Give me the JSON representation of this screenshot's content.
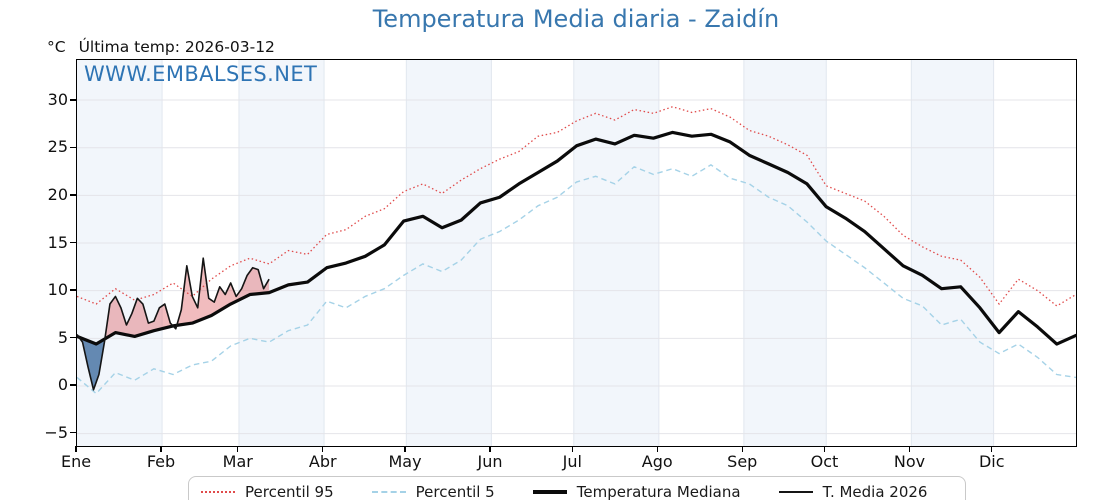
{
  "title": "Temperatura Media diaria - Zaidín",
  "header": {
    "units": "°C",
    "last_temp": "Última temp: 2026-03-12"
  },
  "watermark": "WWW.EMBALSES.NET",
  "colors": {
    "title_blue": "#3877ae",
    "watermark_blue": "#2e74b4",
    "p95_red": "#e04b4b",
    "p5_blue": "#a5d2e7",
    "median_black": "#0b0b0b",
    "t2026_black": "#151515",
    "fill_above": "rgba(222,96,100,0.42)",
    "fill_below": "rgba(64,110,160,0.8)",
    "band": "#f2f6fb",
    "hgrid": "#e4e4e9",
    "vgrid": "#e1e7ef",
    "axis": "#000000",
    "legend_border": "#c9c9c9"
  },
  "chart_data": {
    "type": "line",
    "title": "Temperatura Media diaria - Zaidín",
    "xlabel": "",
    "ylabel": "°C",
    "ylim": [
      -6.3,
      34.2
    ],
    "yticks": [
      -5,
      0,
      5,
      10,
      15,
      20,
      25,
      30
    ],
    "grid": true,
    "legend_position": "bottom",
    "days_in_year": 365,
    "months": [
      {
        "label": "Ene",
        "start_day": 1
      },
      {
        "label": "Feb",
        "start_day": 32
      },
      {
        "label": "Mar",
        "start_day": 60
      },
      {
        "label": "Abr",
        "start_day": 91
      },
      {
        "label": "May",
        "start_day": 121
      },
      {
        "label": "Jun",
        "start_day": 152
      },
      {
        "label": "Jul",
        "start_day": 182
      },
      {
        "label": "Ago",
        "start_day": 213
      },
      {
        "label": "Sep",
        "start_day": 244
      },
      {
        "label": "Oct",
        "start_day": 274
      },
      {
        "label": "Nov",
        "start_day": 305
      },
      {
        "label": "Dic",
        "start_day": 335
      }
    ],
    "series": [
      {
        "name": "Percentil 95",
        "line_style": "dotted",
        "line_weight": "light",
        "color": "#e04b4b",
        "days": [
          1,
          8,
          15,
          22,
          29,
          36,
          43,
          50,
          57,
          64,
          71,
          78,
          85,
          92,
          99,
          106,
          113,
          120,
          127,
          134,
          141,
          148,
          155,
          162,
          169,
          176,
          183,
          190,
          197,
          204,
          211,
          218,
          225,
          232,
          239,
          246,
          253,
          260,
          267,
          274,
          281,
          288,
          295,
          302,
          309,
          316,
          323,
          330,
          337,
          344,
          351,
          358,
          365
        ],
        "values": [
          9.4,
          8.6,
          10.2,
          9.0,
          9.6,
          10.8,
          9.4,
          11.2,
          12.6,
          13.4,
          12.8,
          14.2,
          13.8,
          15.9,
          16.4,
          17.8,
          18.6,
          20.4,
          21.2,
          20.2,
          21.6,
          22.8,
          23.8,
          24.6,
          26.2,
          26.6,
          27.8,
          28.6,
          27.9,
          29.0,
          28.6,
          29.3,
          28.7,
          29.1,
          28.2,
          26.8,
          26.2,
          25.3,
          24.2,
          21.0,
          20.2,
          19.4,
          17.8,
          15.8,
          14.6,
          13.6,
          13.2,
          11.4,
          8.6,
          11.2,
          10.0,
          8.4,
          9.6
        ]
      },
      {
        "name": "Percentil 5",
        "line_style": "dashed",
        "line_weight": "light",
        "color": "#a5d2e7",
        "days": [
          1,
          8,
          15,
          22,
          29,
          36,
          43,
          50,
          57,
          64,
          71,
          78,
          85,
          92,
          99,
          106,
          113,
          120,
          127,
          134,
          141,
          148,
          155,
          162,
          169,
          176,
          183,
          190,
          197,
          204,
          211,
          218,
          225,
          232,
          239,
          246,
          253,
          260,
          267,
          274,
          281,
          288,
          295,
          302,
          309,
          316,
          323,
          330,
          337,
          344,
          351,
          358,
          365
        ],
        "values": [
          0.9,
          -0.8,
          1.4,
          0.6,
          1.8,
          1.2,
          2.2,
          2.6,
          4.2,
          5.0,
          4.6,
          5.8,
          6.4,
          8.9,
          8.2,
          9.4,
          10.2,
          11.6,
          12.8,
          12.0,
          13.2,
          15.4,
          16.2,
          17.4,
          18.9,
          19.8,
          21.4,
          22.0,
          21.2,
          23.0,
          22.2,
          22.8,
          22.0,
          23.2,
          21.8,
          21.2,
          19.8,
          18.9,
          17.2,
          15.2,
          13.8,
          12.4,
          10.8,
          9.2,
          8.4,
          6.4,
          7.0,
          4.6,
          3.4,
          4.4,
          3.0,
          1.2,
          0.9
        ]
      },
      {
        "name": "Temperatura Mediana",
        "line_style": "solid",
        "line_weight": "thick",
        "color": "#0b0b0b",
        "days": [
          1,
          8,
          15,
          22,
          29,
          36,
          43,
          50,
          57,
          64,
          71,
          78,
          85,
          92,
          99,
          106,
          113,
          120,
          127,
          134,
          141,
          148,
          155,
          162,
          169,
          176,
          183,
          190,
          197,
          204,
          211,
          218,
          225,
          232,
          239,
          246,
          253,
          260,
          267,
          274,
          281,
          288,
          295,
          302,
          309,
          316,
          323,
          330,
          337,
          344,
          351,
          358,
          365
        ],
        "values": [
          5.2,
          4.4,
          5.6,
          5.2,
          5.8,
          6.3,
          6.6,
          7.4,
          8.6,
          9.6,
          9.8,
          10.6,
          10.9,
          12.4,
          12.9,
          13.6,
          14.8,
          17.3,
          17.8,
          16.6,
          17.4,
          19.2,
          19.8,
          21.2,
          22.4,
          23.6,
          25.2,
          25.9,
          25.4,
          26.3,
          26.0,
          26.6,
          26.2,
          26.4,
          25.6,
          24.2,
          23.3,
          22.4,
          21.2,
          18.8,
          17.6,
          16.2,
          14.4,
          12.6,
          11.6,
          10.2,
          10.4,
          8.2,
          5.6,
          7.8,
          6.2,
          4.4,
          5.3
        ]
      },
      {
        "name": "T. Media 2026",
        "line_style": "solid",
        "line_weight": "thin",
        "color": "#151515",
        "fill_vs": "Temperatura Mediana",
        "days": [
          1,
          3,
          5,
          7,
          9,
          11,
          13,
          15,
          17,
          19,
          21,
          23,
          25,
          27,
          29,
          31,
          33,
          35,
          37,
          39,
          41,
          43,
          45,
          47,
          49,
          51,
          53,
          55,
          57,
          59,
          61,
          63,
          65,
          67,
          69,
          71
        ],
        "values": [
          5.4,
          4.6,
          2.0,
          -0.4,
          1.2,
          4.6,
          8.6,
          9.4,
          8.2,
          6.4,
          7.6,
          9.2,
          8.6,
          6.6,
          6.8,
          8.2,
          8.6,
          6.6,
          6.0,
          8.0,
          12.6,
          9.4,
          8.2,
          13.4,
          9.2,
          8.8,
          10.4,
          9.6,
          10.8,
          9.4,
          10.2,
          11.6,
          12.4,
          12.2,
          10.2,
          11.2
        ]
      }
    ],
    "shaded_months": [
      "Ene",
      "Mar",
      "May",
      "Jul",
      "Sep",
      "Nov"
    ]
  }
}
